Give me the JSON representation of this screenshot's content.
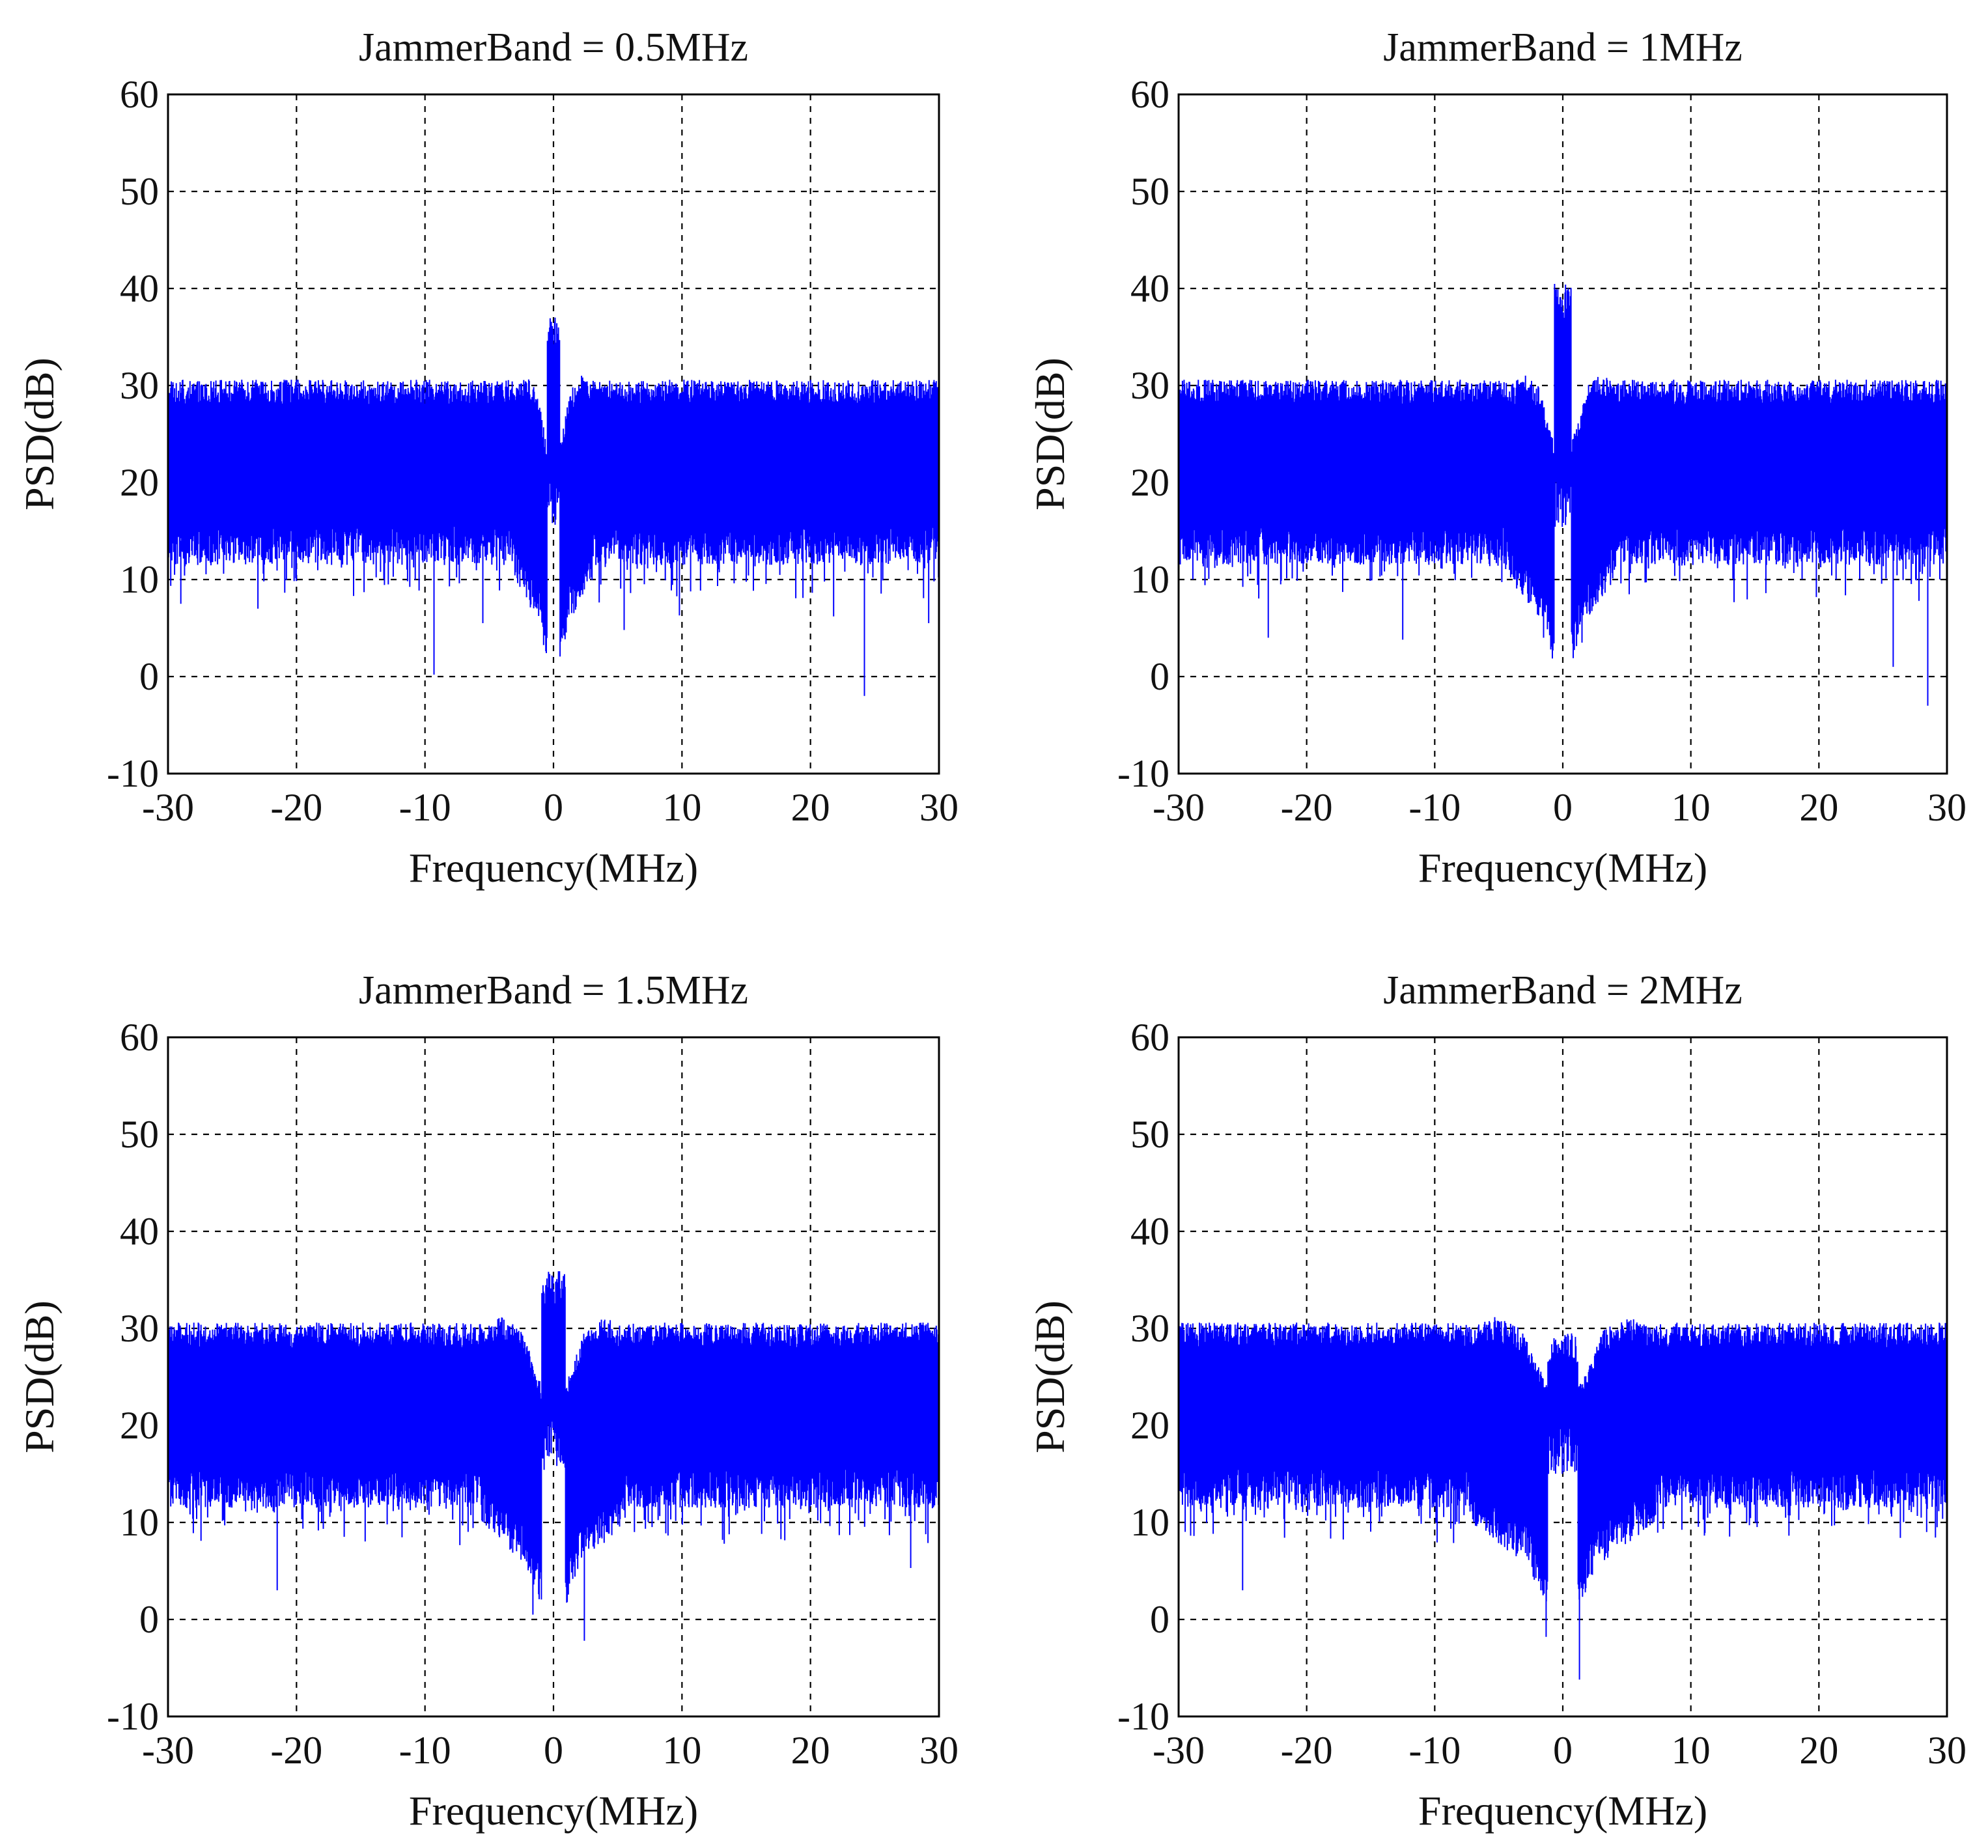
{
  "chart_data": [
    {
      "type": "line",
      "title": "JammerBand = 0.5MHz",
      "xlabel": "Frequency(MHz)",
      "ylabel": "PSD(dB)",
      "xlim": [
        -30,
        30
      ],
      "ylim": [
        -10,
        60
      ],
      "xticks": [
        "-30",
        "-20",
        "-10",
        "0",
        "10",
        "20",
        "30"
      ],
      "yticks": [
        "60",
        "50",
        "40",
        "30",
        "20",
        "10",
        "0",
        "-10"
      ],
      "grid": true,
      "color": "#0000ff",
      "notch_halfwidth_mhz": 1.1,
      "series": [
        {
          "points": [
            [
              -30,
              11
            ],
            [
              -30,
              30.5
            ],
            [
              -25,
              29.8
            ],
            [
              -20,
              30.2
            ],
            [
              -10,
              30
            ],
            [
              -5,
              29.5
            ],
            [
              -1.5,
              26
            ],
            [
              -0.8,
              22
            ],
            [
              -0.3,
              37
            ],
            [
              0.3,
              35
            ],
            [
              0.8,
              22
            ],
            [
              1.5,
              26
            ],
            [
              5,
              29.5
            ],
            [
              10,
              30
            ],
            [
              20,
              30.3
            ],
            [
              30,
              30
            ],
            [
              -29,
              7.5
            ],
            [
              -23,
              7
            ],
            [
              -9.3,
              0.2
            ],
            [
              -5.5,
              5.5
            ],
            [
              0.8,
              6.5
            ],
            [
              5.5,
              4.8
            ],
            [
              9.8,
              6.3
            ],
            [
              21.8,
              6.2
            ],
            [
              24.2,
              -2
            ],
            [
              29.2,
              5.5
            ]
          ]
        }
      ]
    },
    {
      "type": "line",
      "title": "JammerBand = 1MHz",
      "xlabel": "Frequency(MHz)",
      "ylabel": "PSD(dB)",
      "xlim": [
        -30,
        30
      ],
      "ylim": [
        -10,
        60
      ],
      "xticks": [
        "-30",
        "-20",
        "-10",
        "0",
        "10",
        "20",
        "30"
      ],
      "yticks": [
        "60",
        "50",
        "40",
        "30",
        "20",
        "10",
        "0",
        "-10"
      ],
      "grid": true,
      "color": "#0000ff",
      "notch_halfwidth_mhz": 1.5,
      "series": [
        {
          "points": [
            [
              -30,
              10
            ],
            [
              -30,
              30
            ],
            [
              -20,
              30.2
            ],
            [
              -10,
              30
            ],
            [
              -2,
              26
            ],
            [
              -0.8,
              40.5
            ],
            [
              0.8,
              40
            ],
            [
              2,
              25
            ],
            [
              10,
              30
            ],
            [
              20,
              30
            ],
            [
              30,
              30
            ],
            [
              -23,
              4
            ],
            [
              -12.5,
              3.8
            ],
            [
              -1.5,
              4
            ],
            [
              1.5,
              3.5
            ],
            [
              25.8,
              1
            ],
            [
              28.5,
              -3
            ]
          ]
        }
      ]
    },
    {
      "type": "line",
      "title": "JammerBand = 1.5MHz",
      "xlabel": "Frequency(MHz)",
      "ylabel": "PSD(dB)",
      "xlim": [
        -30,
        30
      ],
      "ylim": [
        -10,
        60
      ],
      "xticks": [
        "-30",
        "-20",
        "-10",
        "0",
        "10",
        "20",
        "30"
      ],
      "yticks": [
        "60",
        "50",
        "40",
        "30",
        "20",
        "10",
        "0",
        "-10"
      ],
      "grid": true,
      "color": "#0000ff",
      "notch_halfwidth_mhz": 2.0,
      "series": [
        {
          "points": [
            [
              -30,
              12
            ],
            [
              -30,
              30
            ],
            [
              -20,
              30
            ],
            [
              -10,
              30
            ],
            [
              -4,
              31
            ],
            [
              -2.2,
              21
            ],
            [
              -1,
              36
            ],
            [
              1,
              36
            ],
            [
              2.2,
              21
            ],
            [
              4,
              31
            ],
            [
              10,
              30
            ],
            [
              20,
              30
            ],
            [
              30,
              30
            ],
            [
              -21.5,
              3
            ],
            [
              -1.6,
              0.5
            ],
            [
              2.4,
              -2.2
            ],
            [
              27.8,
              5.3
            ]
          ]
        }
      ]
    },
    {
      "type": "line",
      "title": "JammerBand = 2MHz",
      "xlabel": "Frequency(MHz)",
      "ylabel": "PSD(dB)",
      "xlim": [
        -30,
        30
      ],
      "ylim": [
        -10,
        60
      ],
      "xticks": [
        "-30",
        "-20",
        "-10",
        "0",
        "10",
        "20",
        "30"
      ],
      "yticks": [
        "60",
        "50",
        "40",
        "30",
        "20",
        "10",
        "0",
        "-10"
      ],
      "grid": true,
      "color": "#0000ff",
      "notch_halfwidth_mhz": 2.6,
      "series": [
        {
          "points": [
            [
              -30,
              10
            ],
            [
              -30,
              30
            ],
            [
              -20,
              30
            ],
            [
              -10,
              30
            ],
            [
              -5,
              31.5
            ],
            [
              -2.5,
              24
            ],
            [
              -1,
              29.5
            ],
            [
              1,
              29.5
            ],
            [
              2.5,
              24
            ],
            [
              5,
              31
            ],
            [
              10,
              30
            ],
            [
              20,
              30
            ],
            [
              30,
              30
            ],
            [
              -25,
              3
            ],
            [
              -1.3,
              -1.8
            ],
            [
              1.3,
              -6.2
            ],
            [
              30,
              6
            ]
          ]
        }
      ]
    }
  ]
}
